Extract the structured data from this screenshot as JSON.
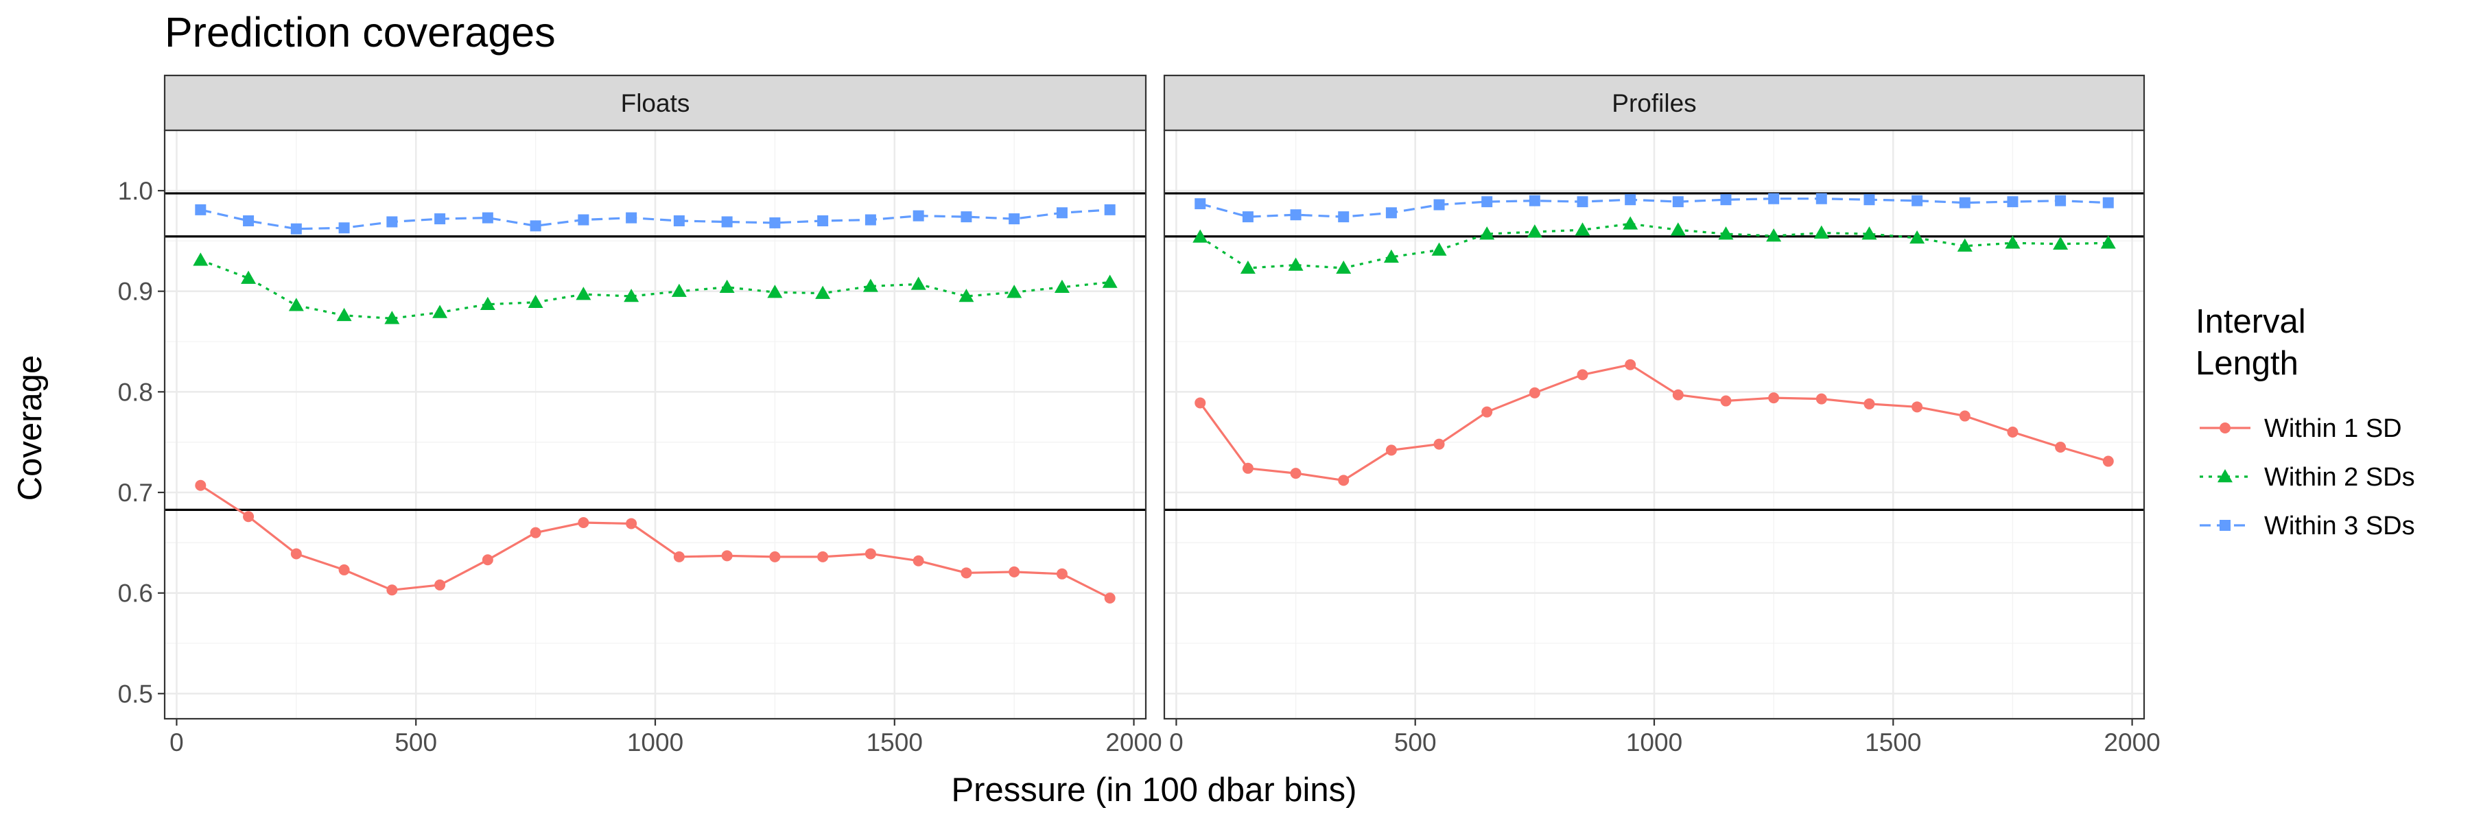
{
  "chart_data": {
    "type": "line",
    "title": "Prediction coverages",
    "xlabel": "Pressure (in 100 dbar bins)",
    "ylabel": "Coverage",
    "xlim": [
      -25,
      2025
    ],
    "ylim": [
      0.475,
      1.06
    ],
    "x_ticks": [
      0,
      500,
      1000,
      1500,
      2000
    ],
    "y_ticks": [
      0.5,
      0.6,
      0.7,
      0.8,
      0.9,
      1.0
    ],
    "y_tick_labels": [
      "0.5",
      "0.6",
      "0.7",
      "0.8",
      "0.9",
      "1.0"
    ],
    "grid": true,
    "reference_lines": [
      0.6827,
      0.9545,
      0.9973
    ],
    "legend": {
      "title_lines": [
        "Interval",
        "Length"
      ],
      "placement": "right"
    },
    "series_styles": [
      {
        "name": "Within 1 SD",
        "color": "#F8766D",
        "shape": "circle",
        "dash": "solid"
      },
      {
        "name": "Within 2 SDs",
        "color": "#00BA38",
        "shape": "triangle",
        "dash": "dotted"
      },
      {
        "name": "Within 3 SDs",
        "color": "#619CFF",
        "shape": "square",
        "dash": "dashed"
      }
    ],
    "x": [
      50,
      150,
      250,
      350,
      450,
      550,
      650,
      750,
      850,
      950,
      1050,
      1150,
      1250,
      1350,
      1450,
      1550,
      1650,
      1750,
      1850,
      1950
    ],
    "panels": [
      {
        "name": "Floats",
        "series": [
          {
            "name": "Within 1 SD",
            "values": [
              0.707,
              0.676,
              0.639,
              0.623,
              0.603,
              0.608,
              0.633,
              0.66,
              0.67,
              0.669,
              0.636,
              0.637,
              0.636,
              0.636,
              0.639,
              0.632,
              0.62,
              0.621,
              0.619,
              0.595
            ]
          },
          {
            "name": "Within 2 SDs",
            "values": [
              0.931,
              0.913,
              0.886,
              0.876,
              0.873,
              0.879,
              0.887,
              0.889,
              0.897,
              0.895,
              0.9,
              0.904,
              0.899,
              0.898,
              0.905,
              0.907,
              0.895,
              0.899,
              0.904,
              0.909
            ]
          },
          {
            "name": "Within 3 SDs",
            "values": [
              0.981,
              0.97,
              0.962,
              0.963,
              0.969,
              0.972,
              0.973,
              0.965,
              0.971,
              0.973,
              0.97,
              0.969,
              0.968,
              0.97,
              0.971,
              0.975,
              0.974,
              0.972,
              0.978,
              0.981
            ]
          }
        ]
      },
      {
        "name": "Profiles",
        "series": [
          {
            "name": "Within 1 SD",
            "values": [
              0.789,
              0.724,
              0.719,
              0.712,
              0.742,
              0.748,
              0.78,
              0.799,
              0.817,
              0.827,
              0.797,
              0.791,
              0.794,
              0.793,
              0.788,
              0.785,
              0.776,
              0.76,
              0.745,
              0.731
            ]
          },
          {
            "name": "Within 2 SDs",
            "values": [
              0.954,
              0.923,
              0.926,
              0.923,
              0.934,
              0.941,
              0.957,
              0.959,
              0.961,
              0.967,
              0.961,
              0.957,
              0.955,
              0.958,
              0.957,
              0.953,
              0.945,
              0.948,
              0.947,
              0.948
            ]
          },
          {
            "name": "Within 3 SDs",
            "values": [
              0.987,
              0.974,
              0.976,
              0.974,
              0.978,
              0.986,
              0.989,
              0.99,
              0.989,
              0.991,
              0.989,
              0.991,
              0.992,
              0.992,
              0.991,
              0.99,
              0.988,
              0.989,
              0.99,
              0.988
            ]
          }
        ]
      }
    ]
  }
}
